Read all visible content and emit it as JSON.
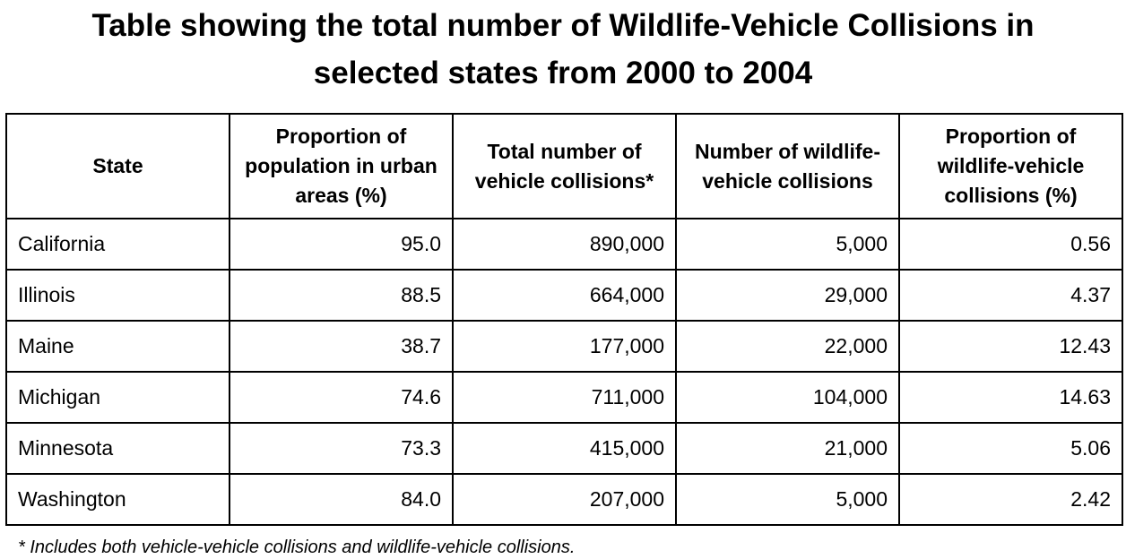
{
  "title": {
    "line1": "Table showing the total number of Wildlife-Vehicle Collisions in",
    "line2": "selected states from 2000 to 2004"
  },
  "table": {
    "columns": [
      "State",
      "Proportion of population in urban areas (%)",
      "Total number of vehicle collisions*",
      "Number of wildlife-vehicle collisions",
      "Proportion of wildlife-vehicle collisions (%)"
    ],
    "rows": [
      [
        "California",
        "95.0",
        "890,000",
        "5,000",
        "0.56"
      ],
      [
        "Illinois",
        "88.5",
        "664,000",
        "29,000",
        "4.37"
      ],
      [
        "Maine",
        "38.7",
        "177,000",
        "22,000",
        "12.43"
      ],
      [
        "Michigan",
        "74.6",
        "711,000",
        "104,000",
        "14.63"
      ],
      [
        "Minnesota",
        "73.3",
        "415,000",
        "21,000",
        "5.06"
      ],
      [
        "Washington",
        "84.0",
        "207,000",
        "5,000",
        "2.42"
      ]
    ]
  },
  "footnote": "* Includes both vehicle-vehicle collisions and wildlife-vehicle collisions."
}
